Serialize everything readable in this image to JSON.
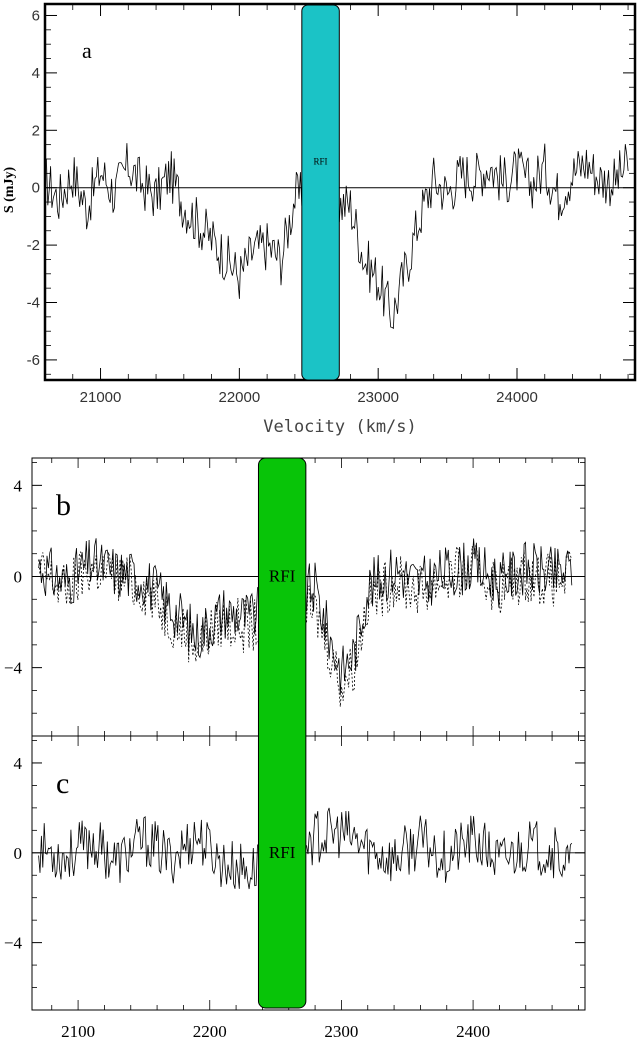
{
  "chart_data": [
    {
      "id": "a",
      "type": "line",
      "panel_label": "a",
      "ylabel": "S (mJy)",
      "xlabel": "Velocity (km/s)",
      "xlim": [
        20600,
        24850
      ],
      "ylim": [
        -6.7,
        6.4
      ],
      "xticks": [
        21000,
        22000,
        23000,
        24000
      ],
      "yticks": [
        -6,
        -4,
        -2,
        0,
        2,
        4,
        6
      ],
      "band": {
        "label": "RFI",
        "x0": 22450,
        "x1": 22720,
        "color": "#1bc3c6"
      },
      "series": [
        {
          "style": "solid",
          "x": [
            20600,
            20700,
            20800,
            20900,
            21000,
            21100,
            21200,
            21300,
            21400,
            21500,
            21600,
            21700,
            21800,
            21900,
            22000,
            22100,
            22200,
            22300,
            22400,
            22800,
            22900,
            23000,
            23100,
            23200,
            23300,
            23400,
            23500,
            23600,
            23700,
            23800,
            23900,
            24000,
            24100,
            24200,
            24300,
            24400,
            24500,
            24600,
            24700,
            24800
          ],
          "y": [
            0.3,
            -0.4,
            0.5,
            -0.7,
            0.6,
            -0.2,
            0.8,
            0.1,
            -0.3,
            0.5,
            -0.6,
            -1.2,
            -1.8,
            -2.4,
            -3.1,
            -2.2,
            -2.0,
            -2.5,
            -0.3,
            -0.6,
            -2.5,
            -3.2,
            -4.5,
            -2.8,
            -1.0,
            0.3,
            -0.2,
            0.5,
            0.4,
            0.8,
            0.2,
            0.6,
            0.1,
            0.7,
            -0.3,
            0.5,
            0.9,
            0.3,
            0.2,
            0.8
          ]
        }
      ]
    },
    {
      "id": "b",
      "type": "line",
      "panel_label": "b",
      "xlim": [
        2065,
        2485
      ],
      "ylim": [
        -7,
        5.2
      ],
      "yticks": [
        -4,
        0,
        4
      ],
      "band": {
        "label": "RFI",
        "x0": 2237,
        "x1": 2273,
        "color": "#08c408"
      },
      "series": [
        {
          "style": "solid",
          "x": [
            2070,
            2090,
            2110,
            2130,
            2150,
            2170,
            2190,
            2210,
            2230,
            2280,
            2290,
            2300,
            2310,
            2320,
            2340,
            2360,
            2380,
            2400,
            2420,
            2440,
            2460,
            2475
          ],
          "y": [
            0.5,
            -0.3,
            0.6,
            0.2,
            -0.1,
            -1.3,
            -2.6,
            -1.5,
            -1.8,
            -0.5,
            -2.5,
            -4.2,
            -3.3,
            -0.5,
            0.3,
            -0.3,
            0.2,
            0.5,
            -0.2,
            0.4,
            0.1,
            0.3
          ]
        },
        {
          "style": "dotted",
          "x": [
            2070,
            2090,
            2110,
            2130,
            2150,
            2170,
            2190,
            2210,
            2230,
            2280,
            2290,
            2300,
            2310,
            2320,
            2340,
            2360,
            2380,
            2400,
            2420,
            2440,
            2460,
            2475
          ],
          "y": [
            0.2,
            -0.6,
            0.4,
            0.0,
            -0.5,
            -1.8,
            -2.9,
            -2.0,
            -2.2,
            -1.5,
            -3.0,
            -4.8,
            -3.8,
            -1.0,
            -0.2,
            -0.6,
            0.0,
            0.3,
            -0.5,
            0.1,
            -0.2,
            0.0
          ]
        }
      ]
    },
    {
      "id": "c",
      "type": "line",
      "panel_label": "c",
      "xlim": [
        2065,
        2485
      ],
      "ylim": [
        -7,
        5.2
      ],
      "xticks": [
        2100,
        2200,
        2300,
        2400
      ],
      "yticks": [
        -4,
        0,
        4
      ],
      "band": {
        "label": "RFI",
        "x0": 2237,
        "x1": 2273,
        "color": "#08c408"
      },
      "series": [
        {
          "style": "solid",
          "x": [
            2070,
            2090,
            2110,
            2130,
            2150,
            2170,
            2190,
            2210,
            2230,
            2280,
            2300,
            2320,
            2340,
            2360,
            2380,
            2400,
            2420,
            2440,
            2460,
            2475
          ],
          "y": [
            0.3,
            -0.2,
            0.5,
            -0.4,
            0.6,
            -0.3,
            0.8,
            -0.5,
            -0.8,
            0.7,
            0.9,
            0.2,
            -0.3,
            0.5,
            -0.2,
            0.6,
            -0.4,
            0.3,
            0.1,
            -0.6
          ]
        }
      ]
    }
  ]
}
